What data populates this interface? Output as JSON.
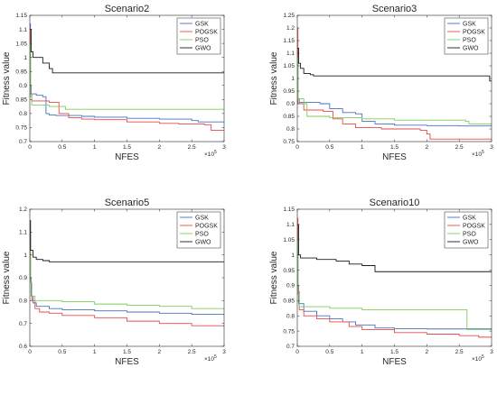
{
  "chart_data": [
    {
      "type": "line",
      "title": "Scenario2",
      "xlabel": "NFES",
      "ylabel": "Fitness value",
      "x_exponent": "10",
      "x_exponent_power": "5",
      "xlim": [
        0,
        3
      ],
      "ylim": [
        0.7,
        1.15
      ],
      "xticks": [
        0,
        0.5,
        1,
        1.5,
        2,
        2.5,
        3
      ],
      "xtick_labels": [
        "0",
        "0.5",
        "1",
        "1.5",
        "2",
        "2.5",
        "3"
      ],
      "yticks": [
        0.7,
        0.75,
        0.8,
        0.85,
        0.9,
        0.95,
        1,
        1.05,
        1.1,
        1.15
      ],
      "ytick_labels": [
        "0.7",
        "0.75",
        "0.8",
        "0.85",
        "0.9",
        "0.95",
        "1",
        "1.05",
        "1.1",
        "1.15"
      ],
      "grid": false,
      "legend_position": "top-right",
      "series": [
        {
          "name": "GSK",
          "color": "#4472c4",
          "points": [
            [
              0,
              1.12
            ],
            [
              0.01,
              0.9
            ],
            [
              0.02,
              0.87
            ],
            [
              0.1,
              0.865
            ],
            [
              0.2,
              0.86
            ],
            [
              0.25,
              0.8
            ],
            [
              0.3,
              0.795
            ],
            [
              0.4,
              0.793
            ],
            [
              0.8,
              0.79
            ],
            [
              1.0,
              0.787
            ],
            [
              1.5,
              0.783
            ],
            [
              2.0,
              0.78
            ],
            [
              2.5,
              0.775
            ],
            [
              2.6,
              0.77
            ],
            [
              3,
              0.77
            ]
          ]
        },
        {
          "name": "POGSK",
          "color": "#e84a4a",
          "points": [
            [
              0,
              1.1
            ],
            [
              0.01,
              0.87
            ],
            [
              0.03,
              0.845
            ],
            [
              0.3,
              0.84
            ],
            [
              0.45,
              0.8
            ],
            [
              0.6,
              0.785
            ],
            [
              0.8,
              0.78
            ],
            [
              1.0,
              0.778
            ],
            [
              1.5,
              0.77
            ],
            [
              2.0,
              0.765
            ],
            [
              2.3,
              0.763
            ],
            [
              2.7,
              0.76
            ],
            [
              2.8,
              0.74
            ],
            [
              3,
              0.74
            ]
          ]
        },
        {
          "name": "PSO",
          "color": "#7dce5a",
          "points": [
            [
              0,
              1.05
            ],
            [
              0.01,
              0.86
            ],
            [
              0.03,
              0.83
            ],
            [
              0.3,
              0.825
            ],
            [
              0.55,
              0.815
            ],
            [
              3,
              0.815
            ]
          ]
        },
        {
          "name": "GWO",
          "color": "#1a1a1a",
          "points": [
            [
              0,
              1.1
            ],
            [
              0.02,
              1.02
            ],
            [
              0.05,
              1.0
            ],
            [
              0.2,
              0.98
            ],
            [
              0.3,
              0.96
            ],
            [
              0.35,
              0.945
            ],
            [
              3,
              0.945
            ]
          ]
        }
      ]
    },
    {
      "type": "line",
      "title": "Scenario3",
      "xlabel": "NFES",
      "ylabel": "Fitness value",
      "x_exponent": "10",
      "x_exponent_power": "5",
      "xlim": [
        0,
        3
      ],
      "ylim": [
        0.75,
        1.25
      ],
      "xticks": [
        0,
        0.5,
        1,
        1.5,
        2,
        2.5,
        3
      ],
      "xtick_labels": [
        "0",
        "0.5",
        "1",
        "1.5",
        "2",
        "2.5",
        "3"
      ],
      "yticks": [
        0.75,
        0.8,
        0.85,
        0.9,
        0.95,
        1,
        1.05,
        1.1,
        1.15,
        1.2,
        1.25
      ],
      "ytick_labels": [
        "0.75",
        "0.8",
        "0.85",
        "0.9",
        "0.95",
        "1",
        "1.05",
        "1.1",
        "1.15",
        "1.2",
        "1.25"
      ],
      "grid": false,
      "legend_position": "top-right",
      "series": [
        {
          "name": "GSK",
          "color": "#4472c4",
          "points": [
            [
              0,
              1.12
            ],
            [
              0.01,
              0.92
            ],
            [
              0.03,
              0.905
            ],
            [
              0.35,
              0.9
            ],
            [
              0.5,
              0.88
            ],
            [
              0.7,
              0.865
            ],
            [
              0.9,
              0.86
            ],
            [
              1.0,
              0.83
            ],
            [
              1.2,
              0.82
            ],
            [
              1.5,
              0.815
            ],
            [
              2.0,
              0.813
            ],
            [
              2.5,
              0.812
            ],
            [
              3,
              0.81
            ]
          ]
        },
        {
          "name": "POGSK",
          "color": "#e84a4a",
          "points": [
            [
              0,
              1.2
            ],
            [
              0.01,
              0.9
            ],
            [
              0.1,
              0.875
            ],
            [
              0.4,
              0.87
            ],
            [
              0.55,
              0.84
            ],
            [
              0.7,
              0.82
            ],
            [
              0.9,
              0.805
            ],
            [
              1.3,
              0.8
            ],
            [
              1.9,
              0.795
            ],
            [
              2.0,
              0.78
            ],
            [
              2.05,
              0.76
            ],
            [
              3,
              0.76
            ]
          ]
        },
        {
          "name": "PSO",
          "color": "#7dce5a",
          "points": [
            [
              0,
              1.08
            ],
            [
              0.01,
              0.92
            ],
            [
              0.1,
              0.9
            ],
            [
              0.15,
              0.85
            ],
            [
              0.5,
              0.845
            ],
            [
              1.0,
              0.84
            ],
            [
              1.5,
              0.835
            ],
            [
              2.6,
              0.83
            ],
            [
              2.65,
              0.82
            ],
            [
              3,
              0.815
            ]
          ]
        },
        {
          "name": "GWO",
          "color": "#1a1a1a",
          "points": [
            [
              0,
              1.12
            ],
            [
              0.02,
              1.06
            ],
            [
              0.05,
              1.04
            ],
            [
              0.1,
              1.02
            ],
            [
              0.2,
              1.015
            ],
            [
              0.25,
              1.01
            ],
            [
              2.95,
              1.01
            ],
            [
              2.97,
              0.99
            ],
            [
              3,
              0.99
            ]
          ]
        }
      ]
    },
    {
      "type": "line",
      "title": "Scenario5",
      "xlabel": "NFES",
      "ylabel": "Fitness value",
      "x_exponent": "10",
      "x_exponent_power": "5",
      "xlim": [
        0,
        3
      ],
      "ylim": [
        0.6,
        1.2
      ],
      "xticks": [
        0,
        0.5,
        1,
        1.5,
        2,
        2.5,
        3
      ],
      "xtick_labels": [
        "0",
        "0.5",
        "1",
        "1.5",
        "2",
        "2.5",
        "3"
      ],
      "yticks": [
        0.6,
        0.7,
        0.8,
        0.9,
        1,
        1.1,
        1.2
      ],
      "ytick_labels": [
        "0.6",
        "0.7",
        "0.8",
        "0.9",
        "1",
        "1.1",
        "1.2"
      ],
      "grid": false,
      "legend_position": "top-right",
      "series": [
        {
          "name": "GSK",
          "color": "#4472c4",
          "points": [
            [
              0,
              1.15
            ],
            [
              0.01,
              0.9
            ],
            [
              0.02,
              0.82
            ],
            [
              0.05,
              0.79
            ],
            [
              0.1,
              0.775
            ],
            [
              0.3,
              0.765
            ],
            [
              0.5,
              0.76
            ],
            [
              1.0,
              0.755
            ],
            [
              1.5,
              0.75
            ],
            [
              2.0,
              0.745
            ],
            [
              2.5,
              0.74
            ],
            [
              3,
              0.735
            ]
          ]
        },
        {
          "name": "POGSK",
          "color": "#e84a4a",
          "points": [
            [
              0,
              1.1
            ],
            [
              0.01,
              0.88
            ],
            [
              0.03,
              0.8
            ],
            [
              0.08,
              0.765
            ],
            [
              0.15,
              0.75
            ],
            [
              0.3,
              0.745
            ],
            [
              0.5,
              0.735
            ],
            [
              1.0,
              0.725
            ],
            [
              1.5,
              0.71
            ],
            [
              2.0,
              0.7
            ],
            [
              2.5,
              0.69
            ],
            [
              3,
              0.685
            ]
          ]
        },
        {
          "name": "PSO",
          "color": "#7dce5a",
          "points": [
            [
              0,
              1.05
            ],
            [
              0.01,
              0.88
            ],
            [
              0.03,
              0.82
            ],
            [
              0.08,
              0.8
            ],
            [
              0.5,
              0.795
            ],
            [
              1.0,
              0.785
            ],
            [
              1.5,
              0.78
            ],
            [
              2.0,
              0.775
            ],
            [
              2.5,
              0.765
            ],
            [
              3,
              0.76
            ]
          ]
        },
        {
          "name": "GWO",
          "color": "#1a1a1a",
          "points": [
            [
              0,
              1.15
            ],
            [
              0.01,
              1.02
            ],
            [
              0.05,
              0.99
            ],
            [
              0.1,
              0.98
            ],
            [
              0.2,
              0.975
            ],
            [
              0.3,
              0.97
            ],
            [
              3,
              0.97
            ]
          ]
        }
      ]
    },
    {
      "type": "line",
      "title": "Scenario10",
      "xlabel": "NFES",
      "ylabel": "Fitness value",
      "x_exponent": "10",
      "x_exponent_power": "5",
      "xlim": [
        0,
        3
      ],
      "ylim": [
        0.7,
        1.15
      ],
      "xticks": [
        0,
        0.5,
        1,
        1.5,
        2,
        2.5,
        3
      ],
      "xtick_labels": [
        "0",
        "0.5",
        "1",
        "1.5",
        "2",
        "2.5",
        "3"
      ],
      "yticks": [
        0.7,
        0.75,
        0.8,
        0.85,
        0.9,
        0.95,
        1,
        1.05,
        1.1,
        1.15
      ],
      "ytick_labels": [
        "0.7",
        "0.75",
        "0.8",
        "0.85",
        "0.9",
        "0.95",
        "1",
        "1.05",
        "1.1",
        "1.15"
      ],
      "grid": false,
      "legend_position": "top-right",
      "series": [
        {
          "name": "GSK",
          "color": "#4472c4",
          "points": [
            [
              0,
              1.1
            ],
            [
              0.01,
              0.9
            ],
            [
              0.02,
              0.84
            ],
            [
              0.1,
              0.815
            ],
            [
              0.3,
              0.8
            ],
            [
              0.5,
              0.79
            ],
            [
              0.7,
              0.78
            ],
            [
              0.9,
              0.77
            ],
            [
              1.2,
              0.76
            ],
            [
              1.5,
              0.758
            ],
            [
              2.0,
              0.757
            ],
            [
              3,
              0.755
            ]
          ]
        },
        {
          "name": "POGSK",
          "color": "#e84a4a",
          "points": [
            [
              0,
              1.12
            ],
            [
              0.01,
              0.88
            ],
            [
              0.03,
              0.82
            ],
            [
              0.1,
              0.8
            ],
            [
              0.3,
              0.79
            ],
            [
              0.5,
              0.78
            ],
            [
              0.8,
              0.765
            ],
            [
              1.0,
              0.755
            ],
            [
              1.5,
              0.745
            ],
            [
              2.0,
              0.74
            ],
            [
              2.5,
              0.735
            ],
            [
              2.8,
              0.73
            ],
            [
              3,
              0.73
            ]
          ]
        },
        {
          "name": "PSO",
          "color": "#7dce5a",
          "points": [
            [
              0,
              1.05
            ],
            [
              0.01,
              0.87
            ],
            [
              0.03,
              0.83
            ],
            [
              0.5,
              0.825
            ],
            [
              1.0,
              0.82
            ],
            [
              2.6,
              0.82
            ],
            [
              2.62,
              0.755
            ],
            [
              3,
              0.755
            ]
          ]
        },
        {
          "name": "GWO",
          "color": "#1a1a1a",
          "points": [
            [
              0,
              1.1
            ],
            [
              0.02,
              1.0
            ],
            [
              0.05,
              0.99
            ],
            [
              0.3,
              0.985
            ],
            [
              0.6,
              0.98
            ],
            [
              0.8,
              0.97
            ],
            [
              1.0,
              0.965
            ],
            [
              1.2,
              0.945
            ],
            [
              3,
              0.945
            ]
          ]
        }
      ]
    }
  ]
}
